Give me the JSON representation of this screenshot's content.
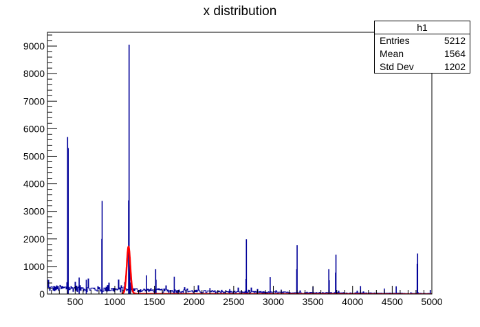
{
  "chart_data": {
    "type": "histogram",
    "title": "x distribution",
    "xlabel": "",
    "ylabel": "",
    "xlim": [
      150,
      5000
    ],
    "ylim": [
      0,
      9500
    ],
    "x_ticks": [
      500,
      1000,
      1500,
      2000,
      2500,
      3000,
      3500,
      4000,
      4500,
      5000
    ],
    "y_ticks": [
      0,
      1000,
      2000,
      3000,
      4000,
      5000,
      6000,
      7000,
      8000,
      9000
    ],
    "grid": false,
    "histogram_color": "#000099",
    "fit_color": "#ff0000",
    "peaks": [
      {
        "x": 404,
        "y": 5700
      },
      {
        "x": 412,
        "y": 5300
      },
      {
        "x": 840,
        "y": 3380
      },
      {
        "x": 836,
        "y": 2000
      },
      {
        "x": 1180,
        "y": 9050
      },
      {
        "x": 1174,
        "y": 3400
      },
      {
        "x": 1188,
        "y": 1500
      },
      {
        "x": 1400,
        "y": 680
      },
      {
        "x": 1515,
        "y": 900
      },
      {
        "x": 1520,
        "y": 520
      },
      {
        "x": 1750,
        "y": 630
      },
      {
        "x": 2660,
        "y": 1990
      },
      {
        "x": 2655,
        "y": 550
      },
      {
        "x": 2960,
        "y": 620
      },
      {
        "x": 3300,
        "y": 1770
      },
      {
        "x": 3295,
        "y": 900
      },
      {
        "x": 3700,
        "y": 900
      },
      {
        "x": 3705,
        "y": 500
      },
      {
        "x": 3790,
        "y": 1430
      },
      {
        "x": 3785,
        "y": 780
      },
      {
        "x": 4820,
        "y": 1470
      },
      {
        "x": 4815,
        "y": 1100
      },
      {
        "x": 550,
        "y": 600
      },
      {
        "x": 640,
        "y": 520
      },
      {
        "x": 2200,
        "y": 220
      },
      {
        "x": 2450,
        "y": 180
      },
      {
        "x": 3100,
        "y": 160
      },
      {
        "x": 3500,
        "y": 260
      },
      {
        "x": 4100,
        "y": 290
      },
      {
        "x": 4400,
        "y": 200
      },
      {
        "x": 4550,
        "y": 280
      },
      {
        "x": 4980,
        "y": 150
      }
    ],
    "continuum": [
      {
        "x": 150,
        "y": 250
      },
      {
        "x": 400,
        "y": 260
      },
      {
        "x": 700,
        "y": 230
      },
      {
        "x": 1000,
        "y": 200
      },
      {
        "x": 1500,
        "y": 160
      },
      {
        "x": 2000,
        "y": 120
      },
      {
        "x": 2500,
        "y": 90
      },
      {
        "x": 3000,
        "y": 70
      },
      {
        "x": 3500,
        "y": 55
      },
      {
        "x": 4000,
        "y": 40
      },
      {
        "x": 4500,
        "y": 30
      },
      {
        "x": 5000,
        "y": 20
      }
    ],
    "fit": {
      "mean": 1173,
      "sigma": 22,
      "amplitude": 1700,
      "baseline": 20
    }
  },
  "stats": {
    "name": "h1",
    "rows": [
      {
        "key": "Entries",
        "value": "5212"
      },
      {
        "key": "Mean",
        "value": "1564"
      },
      {
        "key": "Std Dev",
        "value": "1202"
      }
    ]
  }
}
